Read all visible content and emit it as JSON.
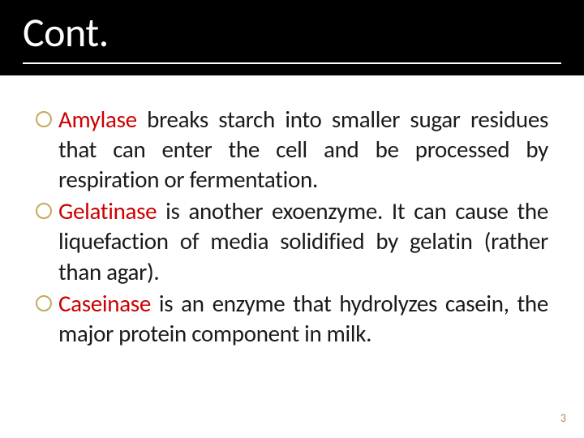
{
  "slide": {
    "title": "Cont.",
    "page_number": "3",
    "background_color": "#ffffff",
    "title_bar_color": "#000000",
    "title_text_color": "#ffffff",
    "title_fontsize": 50,
    "title_underline_color": "#ffffff",
    "bullet_ring_color": "#c5a95f",
    "body_text_color": "#1a1a1a",
    "enzyme_color": "#cc0000",
    "body_fontsize": 29,
    "page_number_color": "#b0885c",
    "bullets": [
      {
        "enzyme": "Amylase",
        "rest": " breaks starch into smaller sugar residues that can enter the cell and be processed by respiration or fermentation."
      },
      {
        "enzyme": "Gelatinase",
        "rest": " is another exoenzyme. It can cause the liquefaction of media solidified by gelatin (rather than agar)."
      },
      {
        "enzyme": "Caseinase",
        "rest": " is an enzyme that hydrolyzes casein, the major protein component in milk."
      }
    ]
  }
}
